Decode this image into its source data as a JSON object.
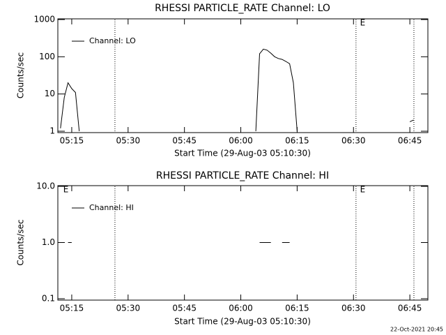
{
  "chart_data": [
    {
      "type": "line",
      "title": "RHESSI PARTICLE_RATE Channel: LO",
      "x_label": "Start Time (29-Aug-03 05:10:30)",
      "y_label": "Counts/sec",
      "log_y": true,
      "xlim": [
        "05:11:18",
        "06:49:48"
      ],
      "ylim": [
        1,
        1000
      ],
      "xticks": [
        "05:15",
        "05:30",
        "05:45",
        "06:00",
        "06:15",
        "06:30",
        "06:45"
      ],
      "yticks": [
        1,
        10,
        100,
        1000
      ],
      "markers": [
        "05:26:30",
        "06:30:40",
        "06:46:05"
      ],
      "annotations": [
        {
          "text": "E",
          "x": "06:31"
        }
      ],
      "legend": "top-left",
      "series": [
        {
          "name": "Channel: LO",
          "color": "#000000",
          "x": [
            "05:12",
            "05:13",
            "05:14",
            "05:15",
            "05:16",
            "05:17",
            "05:30",
            "06:04",
            "06:05",
            "06:06",
            "06:07",
            "06:08",
            "06:09",
            "06:10",
            "06:11",
            "06:12",
            "06:13",
            "06:14",
            "06:15",
            "06:30",
            "06:45",
            "06:46"
          ],
          "values": [
            1.2,
            8,
            20,
            14,
            11,
            1,
            null,
            1,
            120,
            160,
            150,
            125,
            100,
            90,
            85,
            75,
            65,
            20,
            1,
            null,
            1.8,
            2
          ]
        }
      ]
    },
    {
      "type": "line",
      "title": "RHESSI PARTICLE_RATE Channel: HI",
      "x_label": "Start Time (29-Aug-03 05:10:30)",
      "y_label": "Counts/sec",
      "log_y": true,
      "xlim": [
        "05:11:18",
        "06:49:48"
      ],
      "ylim": [
        0.1,
        10
      ],
      "xticks": [
        "05:15",
        "05:30",
        "05:45",
        "06:00",
        "06:15",
        "06:30",
        "06:45"
      ],
      "yticks": [
        0.1,
        {
          "value": 1,
          "label": "1.0"
        },
        {
          "value": 10,
          "label": "10.0"
        }
      ],
      "markers": [
        "05:26:30",
        "06:30:40",
        "06:46:05"
      ],
      "annotations": [
        {
          "text": "E",
          "x": "05:12"
        },
        {
          "text": "E",
          "x": "06:31"
        }
      ],
      "legend": "top-left",
      "series": [
        {
          "name": "Channel: HI",
          "color": "#000000",
          "x": [
            "05:14",
            "05:15",
            "05:30",
            "06:05",
            "06:08",
            "06:09",
            "06:11",
            "06:13"
          ],
          "values": [
            1,
            1,
            null,
            1,
            1,
            null,
            1,
            1
          ]
        }
      ]
    }
  ],
  "footer": "22-Oct-2021 20:45"
}
